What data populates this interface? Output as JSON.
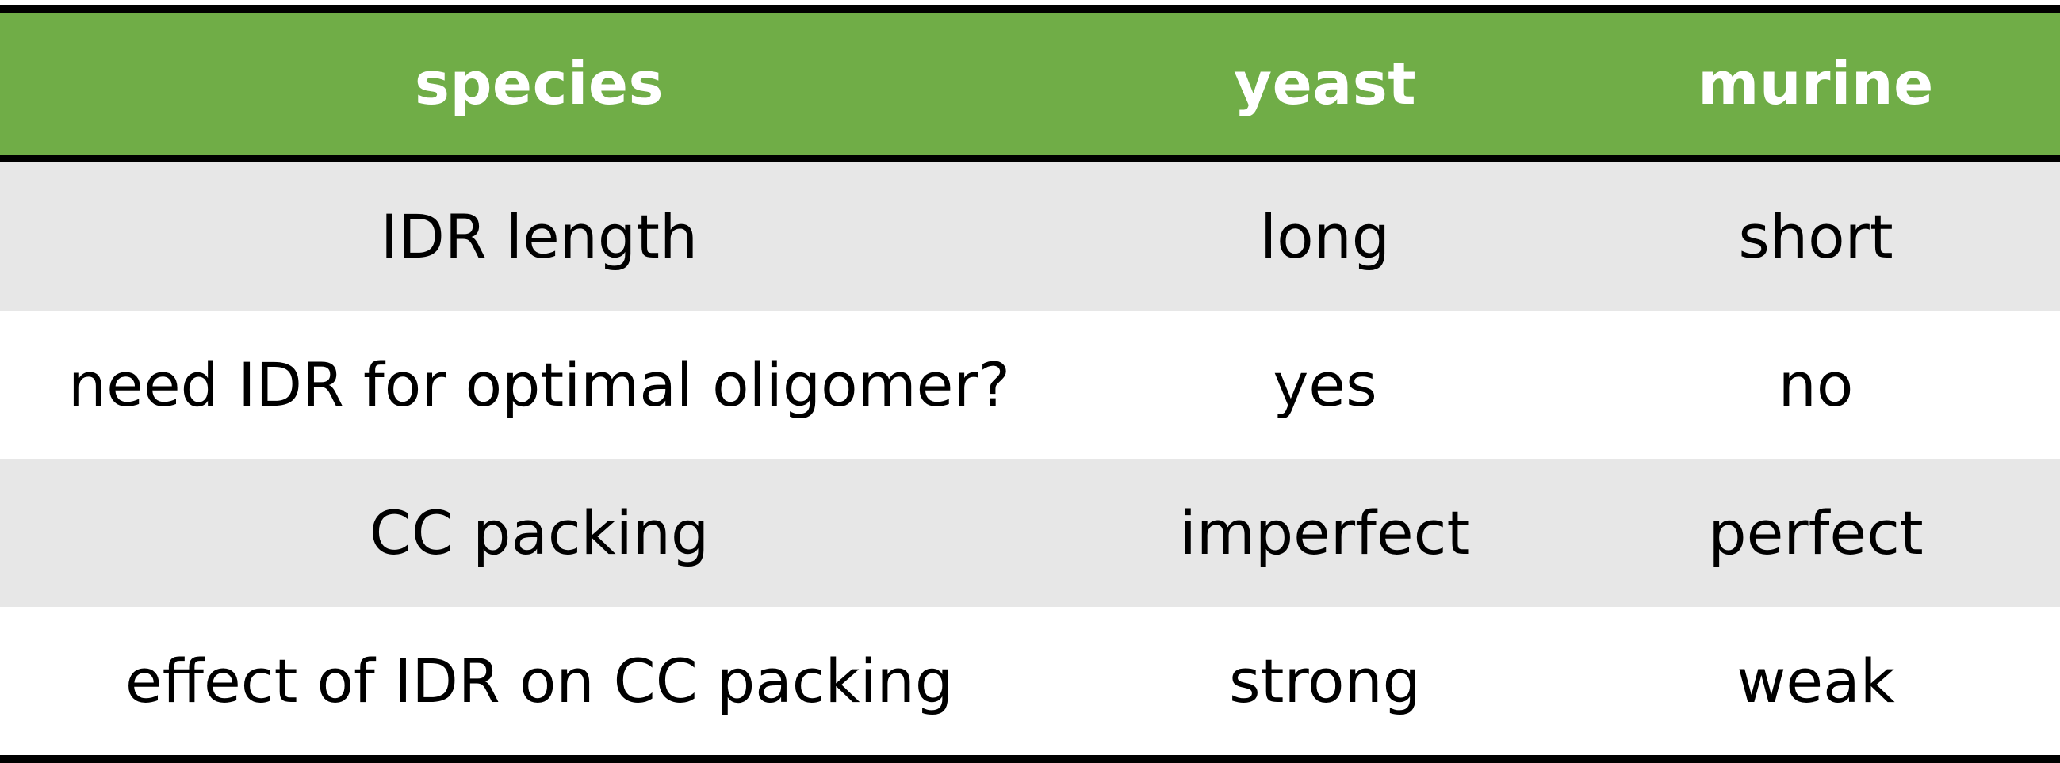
{
  "table": {
    "header": [
      "species",
      "yeast",
      "murine"
    ],
    "rows": [
      [
        "IDR length",
        "long",
        "short"
      ],
      [
        "need IDR for optimal oligomer?",
        "yes",
        "no"
      ],
      [
        "CC packing",
        "imperfect",
        "perfect"
      ],
      [
        "effect of IDR on CC packing",
        "strong",
        "weak"
      ]
    ]
  },
  "colors": {
    "header_background": "#70ad47",
    "header_text": "#ffffff",
    "shaded_row": "#e7e7e7",
    "plain_row": "#ffffff",
    "rule": "#000000"
  }
}
